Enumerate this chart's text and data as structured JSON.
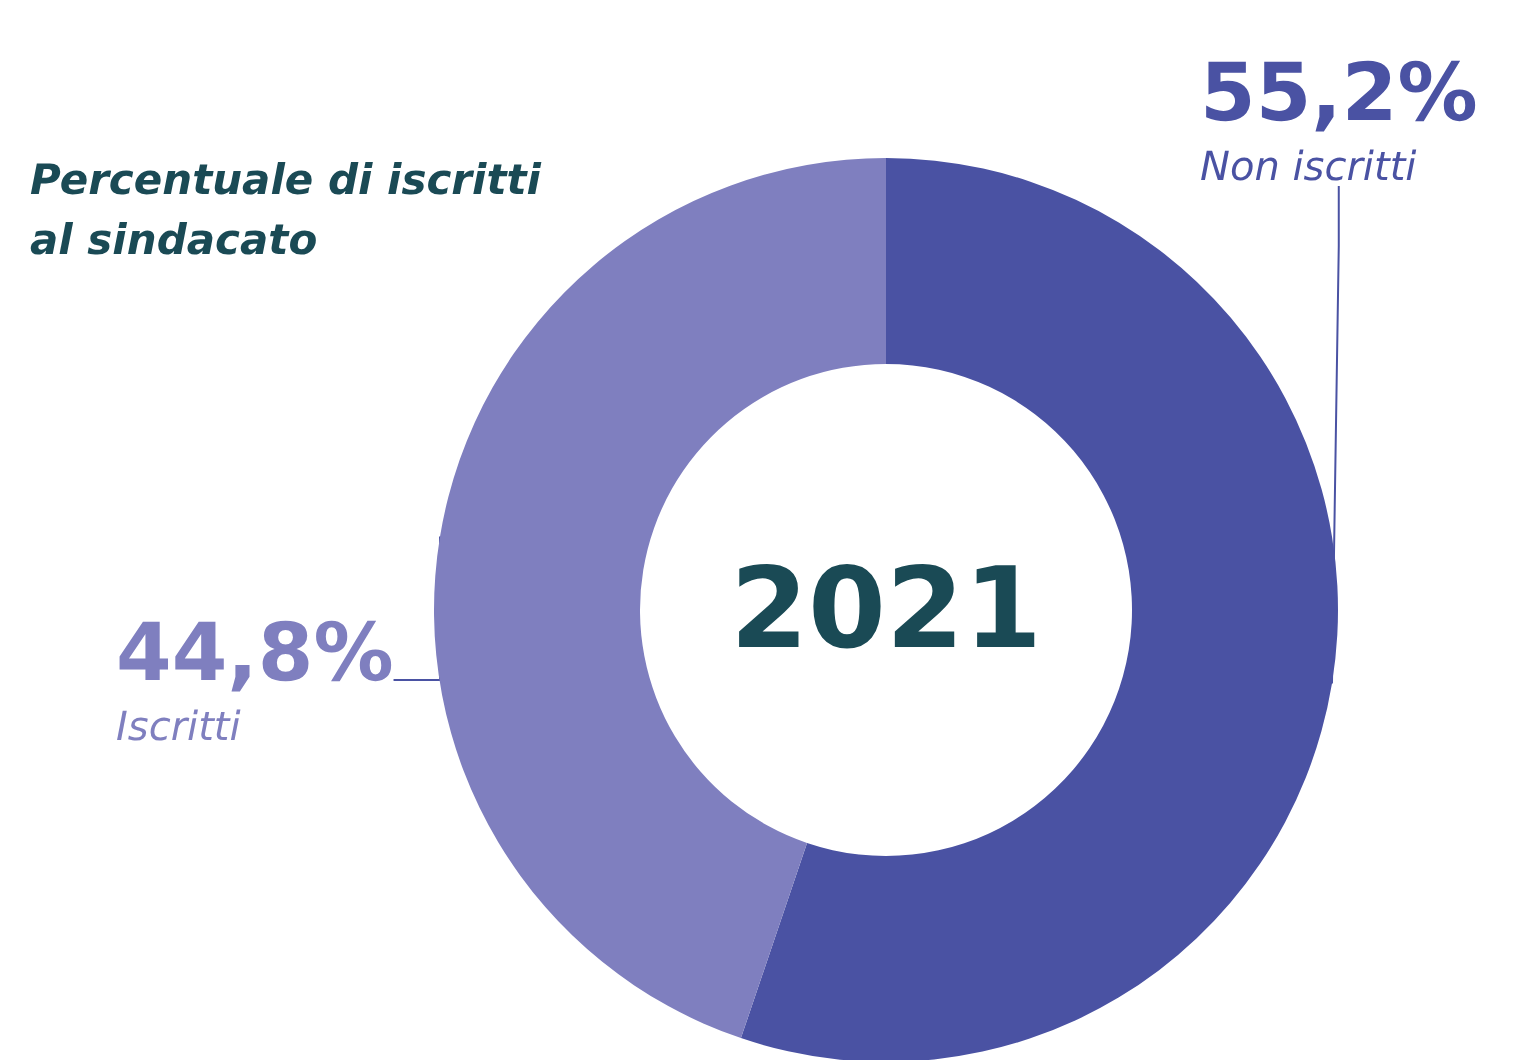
{
  "chart_data": {
    "type": "donut",
    "title": "Percentuale di iscritti al sindacato",
    "categories": [
      "Non iscritti",
      "Iscritti"
    ],
    "values": [
      55.2,
      44.8
    ],
    "colors": [
      "#4a52a3",
      "#7f7fbf"
    ],
    "value_labels": [
      "55,2%",
      "44,8%"
    ],
    "annotations": [
      "2021"
    ]
  }
}
